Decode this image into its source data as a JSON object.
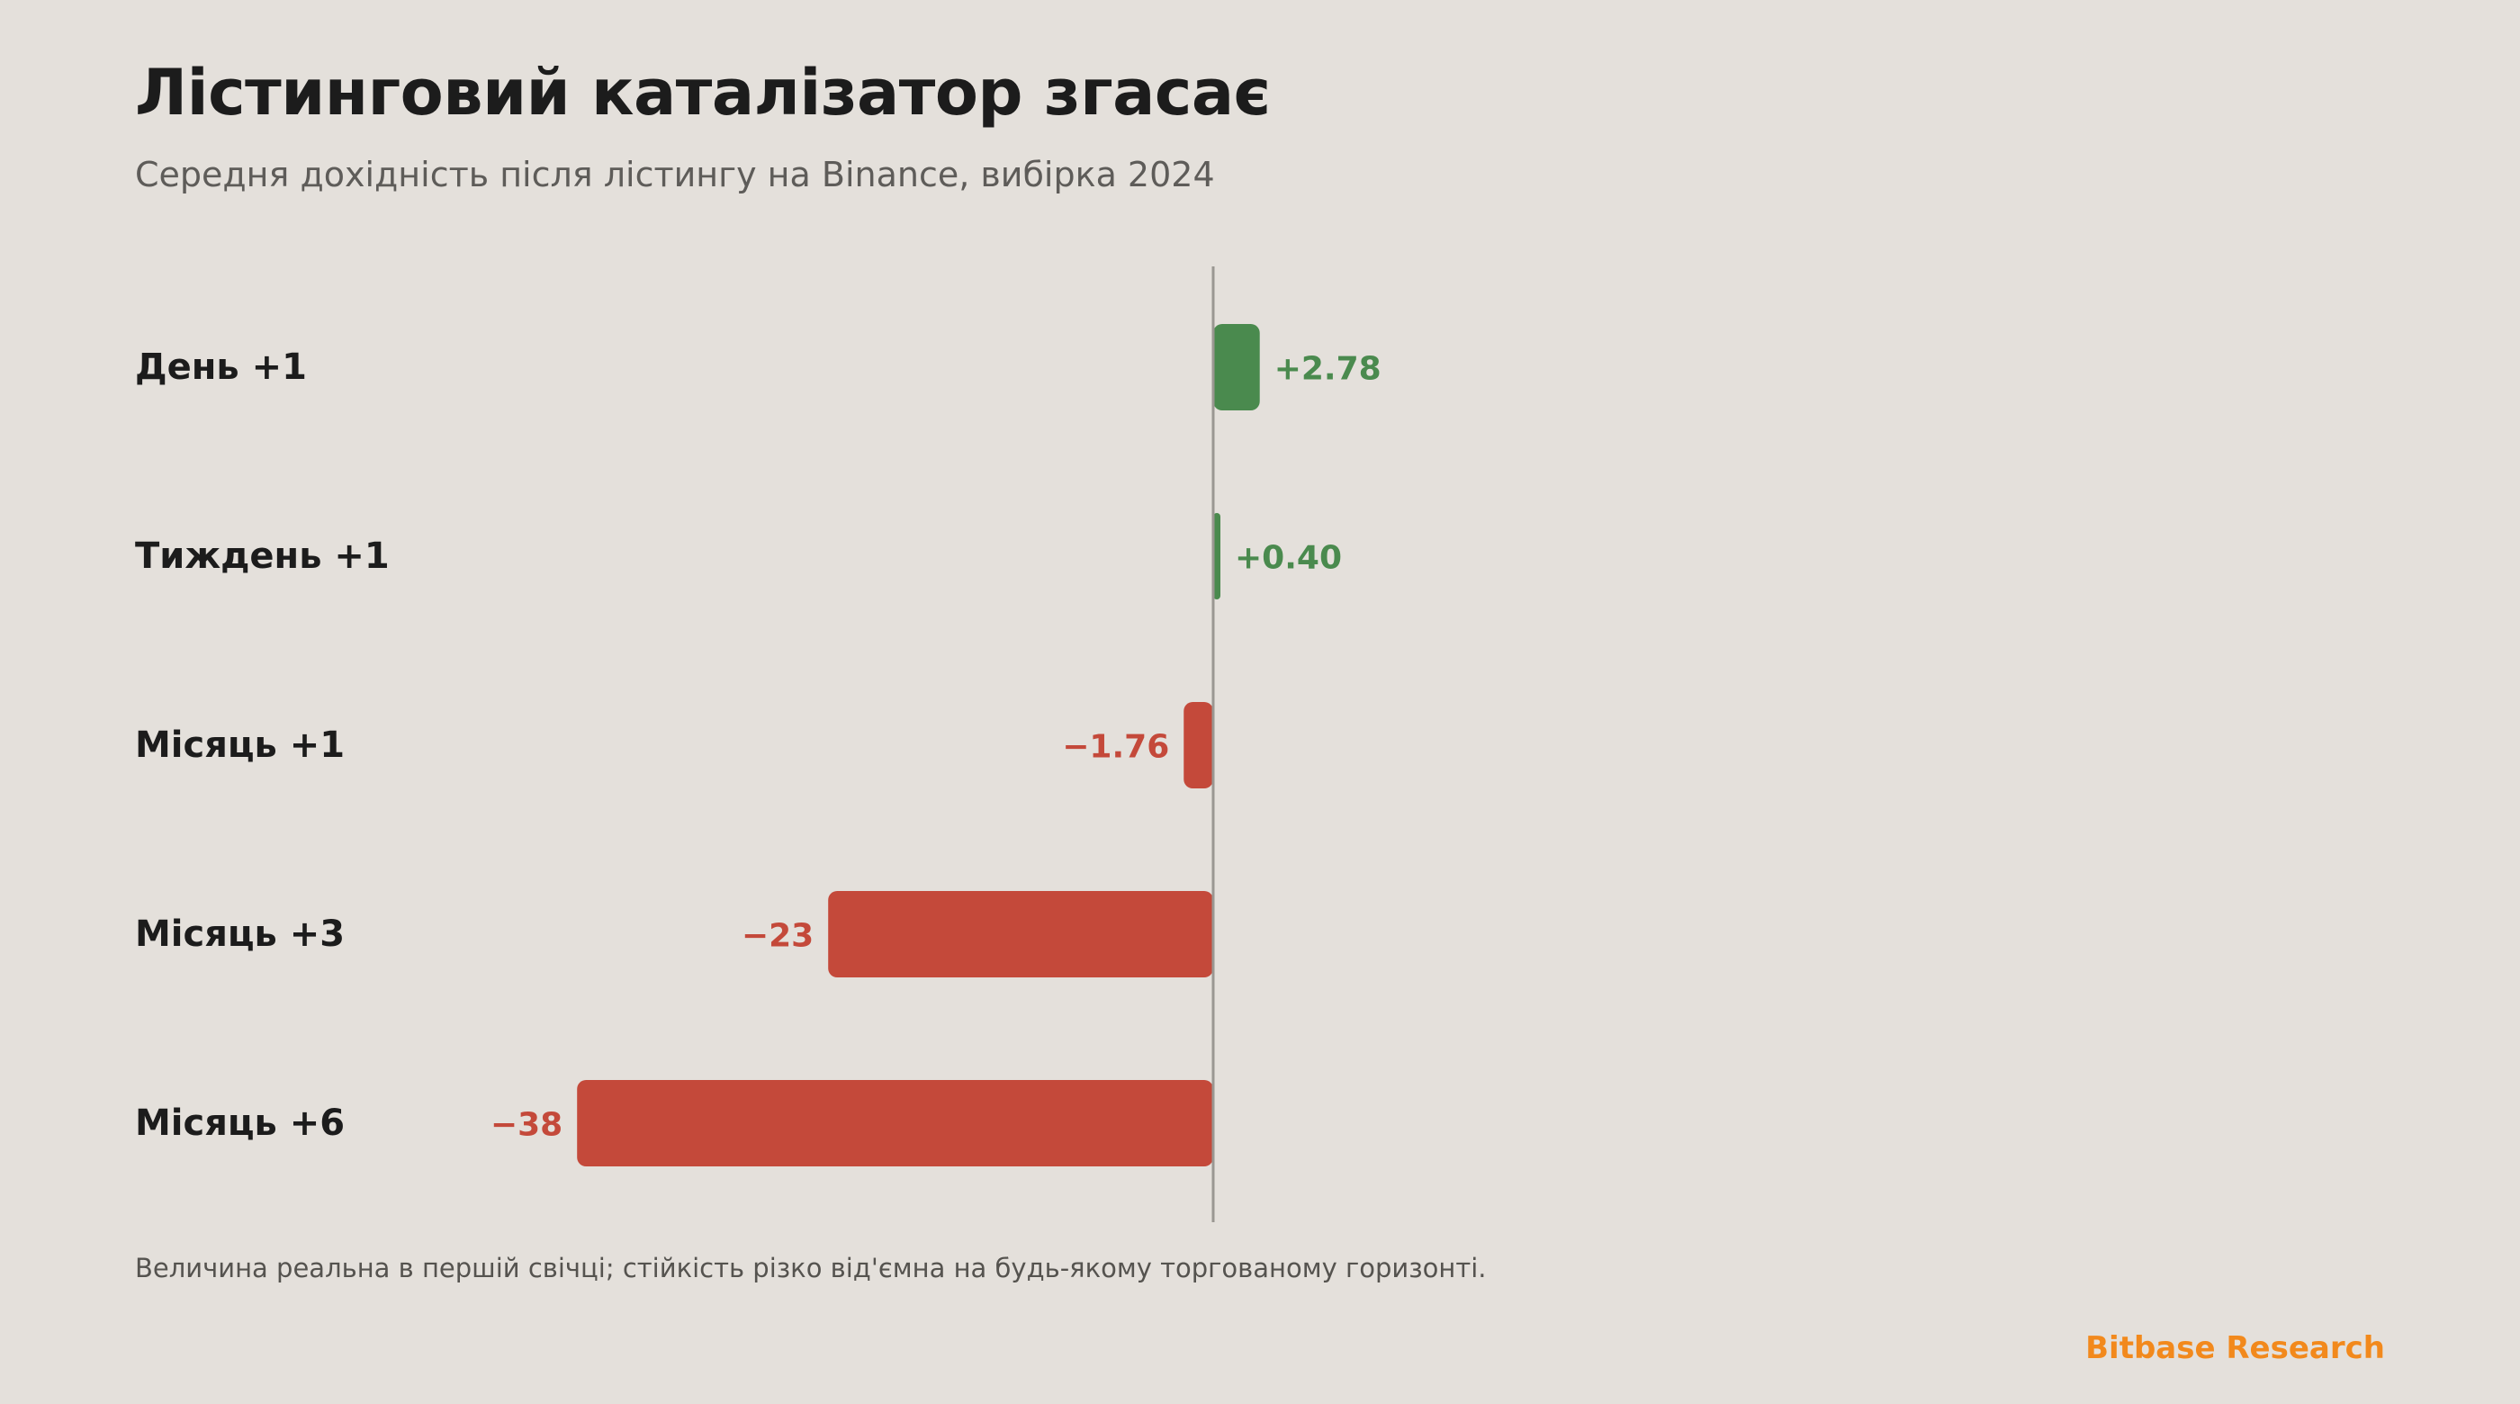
{
  "title": "Лістинговий каталізатор згасає",
  "subtitle": "Середня дохідність після лістингу на Binance, вибірка 2024",
  "footnote": "Величина реальна в першій свічці; стійкість різко від'ємна на будь-якому торгованому горизонті.",
  "brand": "Bitbase Research",
  "colors": {
    "positive": "#4a8a4e",
    "negative": "#c4493a",
    "brand": "#f2891c",
    "background": "#e4e0db",
    "zero_line": "#9a9792"
  },
  "chart_data": {
    "type": "bar",
    "orientation": "horizontal",
    "title": "Лістинговий каталізатор згасає",
    "subtitle": "Середня дохідність після лістингу на Binance, вибірка 2024",
    "categories": [
      "День +1",
      "Тиждень +1",
      "Місяць +1",
      "Місяць +3",
      "Місяць +6"
    ],
    "values": [
      2.78,
      0.4,
      -1.76,
      -23,
      -38
    ],
    "value_labels": [
      "+2.78",
      "+0.40",
      "−1.76",
      "−23",
      "−38"
    ],
    "xlim": [
      -38,
      3
    ],
    "grid": false,
    "zero_line": true
  }
}
